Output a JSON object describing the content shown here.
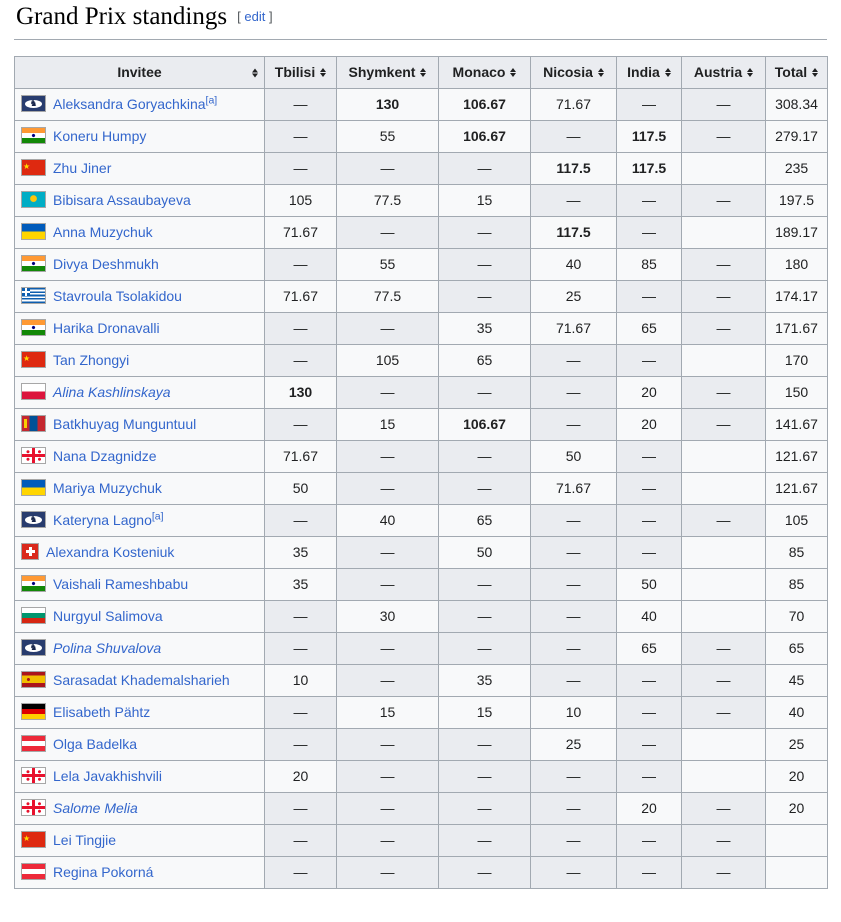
{
  "page": {
    "title": "Grand Prix standings",
    "edit_label": "edit",
    "bracket_open": "[",
    "bracket_close": "]"
  },
  "colors": {
    "link": "#3366cc",
    "header_bg": "#eaecf0",
    "na_cell_bg": "#eaecf0",
    "row_bg": "#f8f9fa",
    "border": "#a2a9b1"
  },
  "table": {
    "columns": [
      "Invitee",
      "Tbilisi",
      "Shymkent",
      "Monaco",
      "Nicosia",
      "India",
      "Austria",
      "Total"
    ],
    "na_symbol": "—",
    "rows": [
      {
        "name": "Aleksandra Goryachkina",
        "flag": "fide",
        "note": "[a]",
        "italic": false,
        "scores": [
          "—",
          "130",
          "106.67",
          "71.67",
          "—",
          "—"
        ],
        "bold": [
          1,
          2
        ],
        "total": "308.34"
      },
      {
        "name": "Koneru Humpy",
        "flag": "india",
        "note": "",
        "italic": false,
        "scores": [
          "—",
          "55",
          "106.67",
          "—",
          "117.5",
          "—"
        ],
        "bold": [
          2,
          4
        ],
        "total": "279.17"
      },
      {
        "name": "Zhu Jiner",
        "flag": "china",
        "note": "",
        "italic": false,
        "scores": [
          "—",
          "—",
          "—",
          "117.5",
          "117.5",
          ""
        ],
        "bold": [
          3,
          4
        ],
        "total": "235"
      },
      {
        "name": "Bibisara Assaubayeva",
        "flag": "kazakhstan",
        "note": "",
        "italic": false,
        "scores": [
          "105",
          "77.5",
          "15",
          "—",
          "—",
          "—"
        ],
        "bold": [],
        "total": "197.5"
      },
      {
        "name": "Anna Muzychuk",
        "flag": "ukraine",
        "note": "",
        "italic": false,
        "scores": [
          "71.67",
          "—",
          "—",
          "117.5",
          "—",
          ""
        ],
        "bold": [
          3
        ],
        "total": "189.17"
      },
      {
        "name": "Divya Deshmukh",
        "flag": "india",
        "note": "",
        "italic": false,
        "scores": [
          "—",
          "55",
          "—",
          "40",
          "85",
          "—"
        ],
        "bold": [],
        "total": "180"
      },
      {
        "name": "Stavroula Tsolakidou",
        "flag": "greece",
        "note": "",
        "italic": false,
        "scores": [
          "71.67",
          "77.5",
          "—",
          "25",
          "—",
          "—"
        ],
        "bold": [],
        "total": "174.17"
      },
      {
        "name": "Harika Dronavalli",
        "flag": "india",
        "note": "",
        "italic": false,
        "scores": [
          "—",
          "—",
          "35",
          "71.67",
          "65",
          "—"
        ],
        "bold": [],
        "total": "171.67"
      },
      {
        "name": "Tan Zhongyi",
        "flag": "china",
        "note": "",
        "italic": false,
        "scores": [
          "—",
          "105",
          "65",
          "—",
          "—",
          ""
        ],
        "bold": [],
        "total": "170"
      },
      {
        "name": "Alina Kashlinskaya",
        "flag": "poland",
        "note": "",
        "italic": true,
        "scores": [
          "130",
          "—",
          "—",
          "—",
          "20",
          "—"
        ],
        "bold": [
          0
        ],
        "total": "150"
      },
      {
        "name": "Batkhuyag Munguntuul",
        "flag": "mongolia",
        "note": "",
        "italic": false,
        "scores": [
          "—",
          "15",
          "106.67",
          "—",
          "20",
          "—"
        ],
        "bold": [
          2
        ],
        "total": "141.67"
      },
      {
        "name": "Nana Dzagnidze",
        "flag": "georgia",
        "note": "",
        "italic": false,
        "scores": [
          "71.67",
          "—",
          "—",
          "50",
          "—",
          ""
        ],
        "bold": [],
        "total": "121.67"
      },
      {
        "name": "Mariya Muzychuk",
        "flag": "ukraine",
        "note": "",
        "italic": false,
        "scores": [
          "50",
          "—",
          "—",
          "71.67",
          "—",
          ""
        ],
        "bold": [],
        "total": "121.67"
      },
      {
        "name": "Kateryna Lagno",
        "flag": "fide",
        "note": "[a]",
        "italic": false,
        "scores": [
          "—",
          "40",
          "65",
          "—",
          "—",
          "—"
        ],
        "bold": [],
        "total": "105"
      },
      {
        "name": "Alexandra Kosteniuk",
        "flag": "switzerland",
        "note": "",
        "italic": false,
        "scores": [
          "35",
          "—",
          "50",
          "—",
          "—",
          ""
        ],
        "bold": [],
        "total": "85"
      },
      {
        "name": "Vaishali Rameshbabu",
        "flag": "india",
        "note": "",
        "italic": false,
        "scores": [
          "35",
          "—",
          "—",
          "—",
          "50",
          ""
        ],
        "bold": [],
        "total": "85"
      },
      {
        "name": "Nurgyul Salimova",
        "flag": "bulgaria",
        "note": "",
        "italic": false,
        "scores": [
          "—",
          "30",
          "—",
          "—",
          "40",
          ""
        ],
        "bold": [],
        "total": "70"
      },
      {
        "name": "Polina Shuvalova",
        "flag": "fide",
        "note": "",
        "italic": true,
        "scores": [
          "—",
          "—",
          "—",
          "—",
          "65",
          "—"
        ],
        "bold": [],
        "total": "65"
      },
      {
        "name": "Sarasadat Khademalsharieh",
        "flag": "spain",
        "note": "",
        "italic": false,
        "scores": [
          "10",
          "—",
          "35",
          "—",
          "—",
          "—"
        ],
        "bold": [],
        "total": "45"
      },
      {
        "name": "Elisabeth Pähtz",
        "flag": "germany",
        "note": "",
        "italic": false,
        "scores": [
          "—",
          "15",
          "15",
          "10",
          "—",
          "—"
        ],
        "bold": [],
        "total": "40"
      },
      {
        "name": "Olga Badelka",
        "flag": "austria",
        "note": "",
        "italic": false,
        "scores": [
          "—",
          "—",
          "—",
          "25",
          "—",
          ""
        ],
        "bold": [],
        "total": "25"
      },
      {
        "name": "Lela Javakhishvili",
        "flag": "georgia",
        "note": "",
        "italic": false,
        "scores": [
          "20",
          "—",
          "—",
          "—",
          "—",
          ""
        ],
        "bold": [],
        "total": "20"
      },
      {
        "name": "Salome Melia",
        "flag": "georgia",
        "note": "",
        "italic": true,
        "scores": [
          "—",
          "—",
          "—",
          "—",
          "20",
          "—"
        ],
        "bold": [],
        "total": "20"
      },
      {
        "name": "Lei Tingjie",
        "flag": "china",
        "note": "",
        "italic": false,
        "scores": [
          "—",
          "—",
          "—",
          "—",
          "—",
          "—"
        ],
        "bold": [],
        "total": ""
      },
      {
        "name": "Regina Pokorná",
        "flag": "austria",
        "note": "",
        "italic": false,
        "scores": [
          "—",
          "—",
          "—",
          "—",
          "—",
          "—"
        ],
        "bold": [],
        "total": ""
      }
    ]
  }
}
